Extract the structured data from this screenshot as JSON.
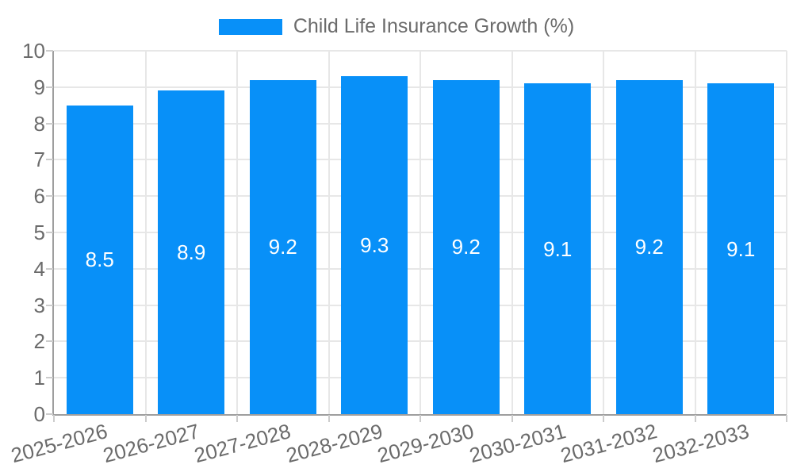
{
  "chart_data": {
    "type": "bar",
    "legend": "Child Life Insurance Growth (%)",
    "legend_position": "top-center",
    "categories": [
      "2025-2026",
      "2026-2027",
      "2027-2028",
      "2028-2029",
      "2029-2030",
      "2030-2031",
      "2031-2032",
      "2032-2033"
    ],
    "values": [
      8.5,
      8.9,
      9.2,
      9.3,
      9.2,
      9.1,
      9.2,
      9.1
    ],
    "value_labels": [
      "8.5",
      "8.9",
      "9.2",
      "9.3",
      "9.2",
      "9.1",
      "9.2",
      "9.1"
    ],
    "ylim": [
      0,
      10
    ],
    "yticks": [
      0,
      1,
      2,
      3,
      4,
      5,
      6,
      7,
      8,
      9,
      10
    ],
    "grid": true,
    "xlabel": "",
    "ylabel": "",
    "colors": {
      "bar": "#0890F8",
      "grid": "#e7e7e7",
      "axis": "#9e9e9e",
      "tick": "#cccccc",
      "label": "#6b6b6b",
      "value_text": "#ffffff",
      "background": "#ffffff"
    }
  }
}
